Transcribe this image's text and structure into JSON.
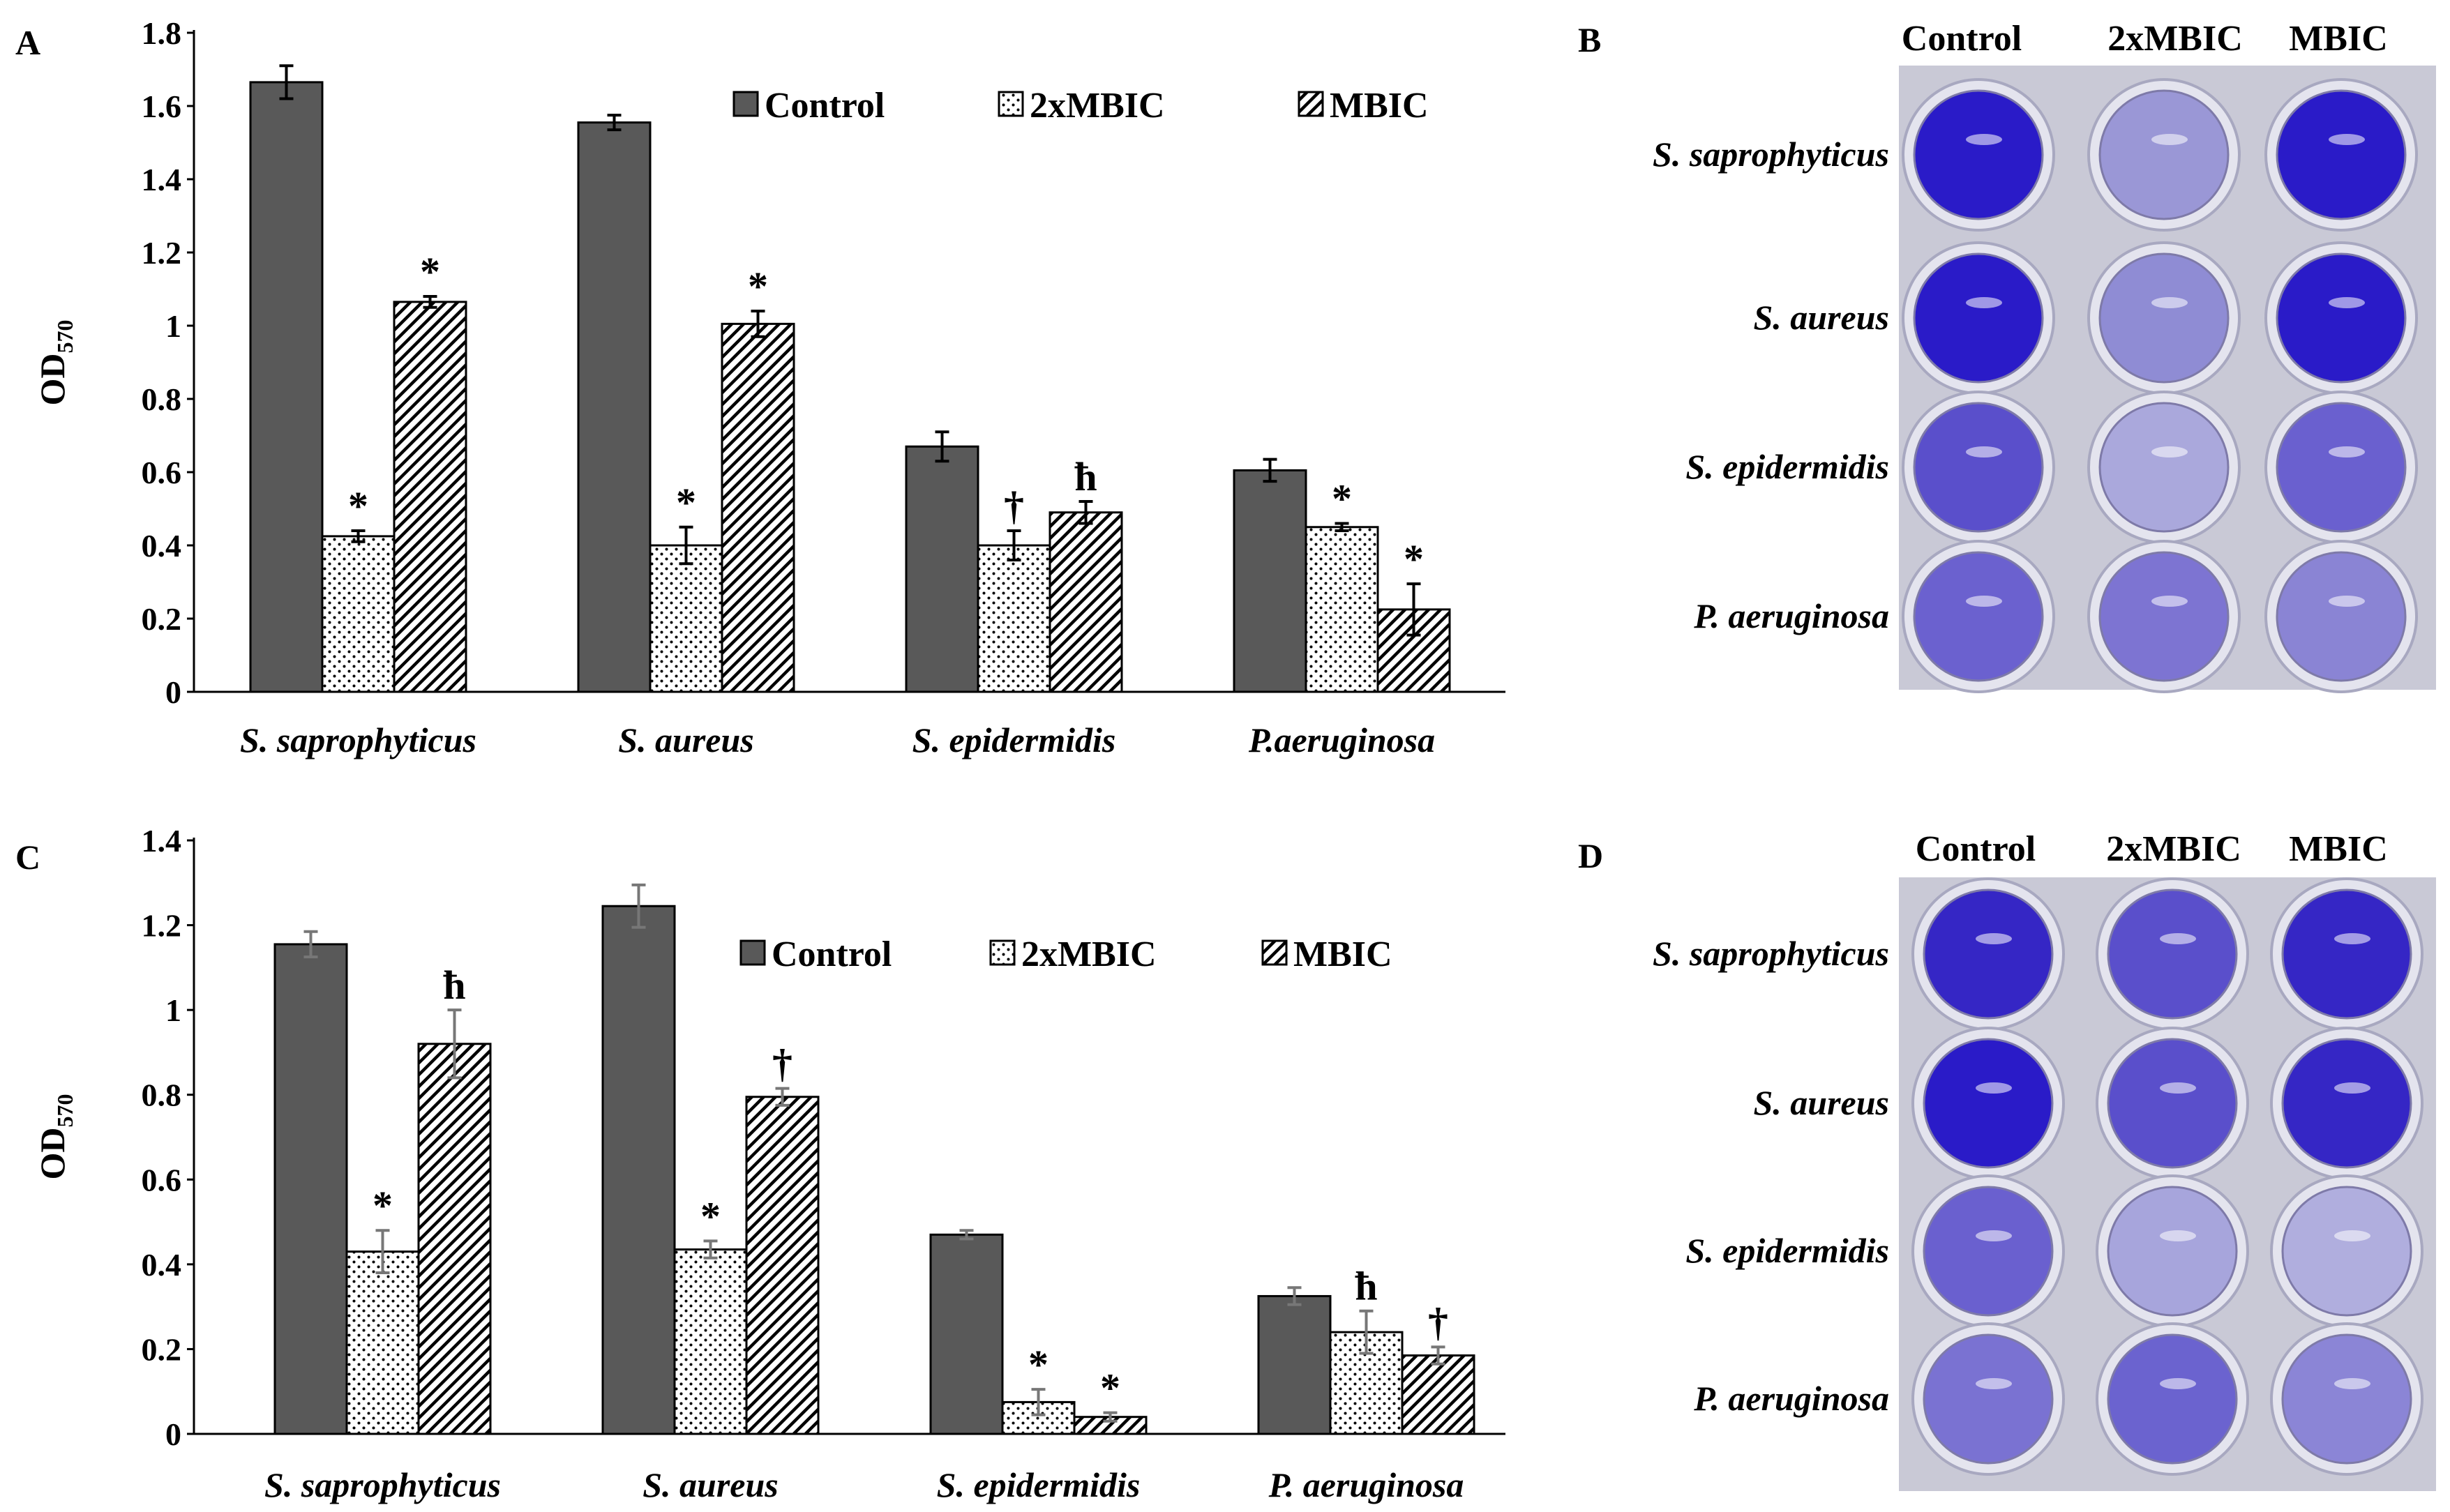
{
  "panels": {
    "a": {
      "label": "A"
    },
    "b": {
      "label": "B"
    },
    "c": {
      "label": "C"
    },
    "d": {
      "label": "D"
    }
  },
  "chart_data": [
    {
      "panel": "A",
      "type": "bar",
      "ylabel": "OD",
      "ylabel_subscript": "570",
      "ylim": [
        0,
        1.8
      ],
      "ytick_step": 0.2,
      "yticks": [
        "0",
        "0.2",
        "0.4",
        "0.6",
        "0.8",
        "1",
        "1.2",
        "1.4",
        "1.6",
        "1.8"
      ],
      "categories": [
        "S. saprophyticus",
        "S. aureus",
        "S. epidermidis",
        "P.aeruginosa"
      ],
      "legend_position": "top-right",
      "grid": false,
      "series": [
        {
          "name": "Control",
          "pattern": "solid",
          "color": "#595959",
          "values": [
            1.665,
            1.555,
            0.67,
            0.605
          ],
          "errors": [
            0.045,
            0.02,
            0.04,
            0.03
          ],
          "marks": [
            "",
            "",
            "",
            ""
          ]
        },
        {
          "name": "2xMBIC",
          "pattern": "dots",
          "color": "#ffffff",
          "values": [
            0.425,
            0.4,
            0.4,
            0.45
          ],
          "errors": [
            0.015,
            0.05,
            0.04,
            0.01
          ],
          "marks": [
            "*",
            "*",
            "†",
            "*"
          ]
        },
        {
          "name": "MBIC",
          "pattern": "diagonal",
          "color": "#ffffff",
          "values": [
            1.065,
            1.005,
            0.49,
            0.225
          ],
          "errors": [
            0.015,
            0.035,
            0.03,
            0.07
          ],
          "marks": [
            "*",
            "*",
            "ħ",
            "*"
          ]
        }
      ]
    },
    {
      "panel": "C",
      "type": "bar",
      "ylabel": "OD",
      "ylabel_subscript": "570",
      "ylim": [
        0,
        1.4
      ],
      "ytick_step": 0.2,
      "yticks": [
        "0",
        "0.2",
        "0.4",
        "0.6",
        "0.8",
        "1",
        "1.2",
        "1.4"
      ],
      "categories": [
        "S. saprophyticus",
        "S. aureus",
        "S. epidermidis",
        "P. aeruginosa"
      ],
      "legend_position": "top-right",
      "grid": false,
      "series": [
        {
          "name": "Control",
          "pattern": "solid",
          "color": "#595959",
          "values": [
            1.155,
            1.245,
            0.47,
            0.325
          ],
          "errors": [
            0.03,
            0.05,
            0.01,
            0.02
          ],
          "marks": [
            "",
            "",
            "",
            ""
          ]
        },
        {
          "name": "2xMBIC",
          "pattern": "dots",
          "color": "#ffffff",
          "values": [
            0.43,
            0.435,
            0.075,
            0.24
          ],
          "errors": [
            0.05,
            0.02,
            0.03,
            0.05
          ],
          "marks": [
            "*",
            "*",
            "*",
            "ħ"
          ]
        },
        {
          "name": "MBIC",
          "pattern": "diagonal",
          "color": "#ffffff",
          "values": [
            0.92,
            0.795,
            0.04,
            0.185
          ],
          "errors": [
            0.08,
            0.02,
            0.01,
            0.02
          ],
          "marks": [
            "ħ",
            "†",
            "*",
            "†"
          ]
        }
      ]
    }
  ],
  "photos": [
    {
      "panel": "B",
      "columns": [
        "Control",
        "2xMBIC",
        "MBIC"
      ],
      "rows": [
        "S. saprophyticus",
        "S. aureus",
        "S. epidermidis",
        "P. aeruginosa"
      ],
      "well_colors": [
        [
          "#2a1bc8",
          "#9a97d6",
          "#2a1bc8"
        ],
        [
          "#2a1bc8",
          "#8f8cd4",
          "#2a1bc8"
        ],
        [
          "#5a4fcb",
          "#aaa8dc",
          "#6a60cf"
        ],
        [
          "#6b61cf",
          "#7d74d2",
          "#8a84d4"
        ]
      ]
    },
    {
      "panel": "D",
      "columns": [
        "Control",
        "2xMBIC",
        "MBIC"
      ],
      "rows": [
        "S. saprophyticus",
        "S. aureus",
        "S. epidermidis",
        "P. aeruginosa"
      ],
      "well_colors": [
        [
          "#3526c5",
          "#5a4fcb",
          "#3526c5"
        ],
        [
          "#2a1bc8",
          "#5a4fcb",
          "#3526c5"
        ],
        [
          "#6a60cf",
          "#a7a5dc",
          "#b0aede"
        ],
        [
          "#7a72d2",
          "#6b63cf",
          "#8b85d6"
        ]
      ]
    }
  ]
}
